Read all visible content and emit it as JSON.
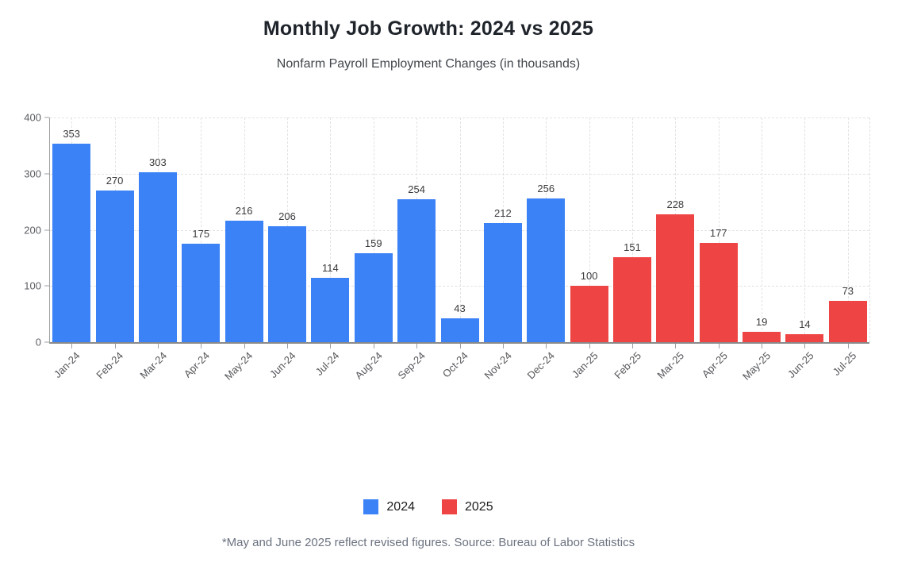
{
  "chart_data": {
    "type": "bar",
    "title": "Monthly Job Growth: 2024 vs 2025",
    "subtitle": "Nonfarm Payroll Employment Changes (in thousands)",
    "footnote": "*May and June 2025 reflect revised figures. Source: Bureau of Labor Statistics",
    "xlabel": "",
    "ylabel": "",
    "ylim": [
      0,
      400
    ],
    "yticks": [
      0,
      100,
      200,
      300,
      400
    ],
    "grid": true,
    "grid_style": "dashed",
    "legend_position": "bottom",
    "colors": {
      "series_2024": "#3b82f6",
      "series_2025": "#ef4444"
    },
    "legend": [
      {
        "label": "2024",
        "color": "#3b82f6"
      },
      {
        "label": "2025",
        "color": "#ef4444"
      }
    ],
    "bars": [
      {
        "label": "Jan-24",
        "value": 353,
        "series": "2024"
      },
      {
        "label": "Feb-24",
        "value": 270,
        "series": "2024"
      },
      {
        "label": "Mar-24",
        "value": 303,
        "series": "2024"
      },
      {
        "label": "Apr-24",
        "value": 175,
        "series": "2024"
      },
      {
        "label": "May-24",
        "value": 216,
        "series": "2024"
      },
      {
        "label": "Jun-24",
        "value": 206,
        "series": "2024"
      },
      {
        "label": "Jul-24",
        "value": 114,
        "series": "2024"
      },
      {
        "label": "Aug-24",
        "value": 159,
        "series": "2024"
      },
      {
        "label": "Sep-24",
        "value": 254,
        "series": "2024"
      },
      {
        "label": "Oct-24",
        "value": 43,
        "series": "2024"
      },
      {
        "label": "Nov-24",
        "value": 212,
        "series": "2024"
      },
      {
        "label": "Dec-24",
        "value": 256,
        "series": "2024"
      },
      {
        "label": "Jan-25",
        "value": 100,
        "series": "2025"
      },
      {
        "label": "Feb-25",
        "value": 151,
        "series": "2025"
      },
      {
        "label": "Mar-25",
        "value": 228,
        "series": "2025"
      },
      {
        "label": "Apr-25",
        "value": 177,
        "series": "2025"
      },
      {
        "label": "May-25",
        "value": 19,
        "series": "2025"
      },
      {
        "label": "Jun-25",
        "value": 14,
        "series": "2025"
      },
      {
        "label": "Jul-25",
        "value": 73,
        "series": "2025"
      }
    ]
  }
}
